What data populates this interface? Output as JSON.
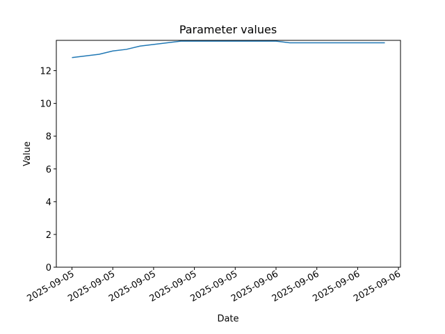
{
  "chart_data": {
    "type": "line",
    "title": "Parameter values",
    "x_label": "Date",
    "y_label": "Value",
    "x": [
      0,
      1,
      2,
      3,
      4,
      5,
      6,
      7,
      8,
      9,
      10,
      11,
      12,
      13,
      14,
      15,
      16,
      17,
      18,
      19,
      20,
      21,
      22,
      23
    ],
    "series": [
      {
        "name": "Value",
        "color": "#1f77b4",
        "values": [
          12.8,
          12.9,
          13.0,
          13.2,
          13.3,
          13.5,
          13.6,
          13.7,
          13.8,
          13.8,
          13.8,
          13.8,
          13.8,
          13.8,
          13.8,
          13.8,
          13.7,
          13.7,
          13.7,
          13.7,
          13.7,
          13.7,
          13.7,
          13.7
        ]
      }
    ],
    "xlim": [
      -1.15,
      24.15
    ],
    "xticks": [
      {
        "value": 0,
        "label": "2025-09-05"
      },
      {
        "value": 3,
        "label": "2025-09-05"
      },
      {
        "value": 6,
        "label": "2025-09-05"
      },
      {
        "value": 9,
        "label": "2025-09-05"
      },
      {
        "value": 12,
        "label": "2025-09-05"
      },
      {
        "value": 15,
        "label": "2025-09-06"
      },
      {
        "value": 18,
        "label": "2025-09-06"
      },
      {
        "value": 21,
        "label": "2025-09-06"
      },
      {
        "value": 24,
        "label": "2025-09-06"
      }
    ],
    "ylim": [
      0,
      13.85
    ],
    "yticks": [
      0,
      2,
      4,
      6,
      8,
      10,
      12
    ]
  }
}
